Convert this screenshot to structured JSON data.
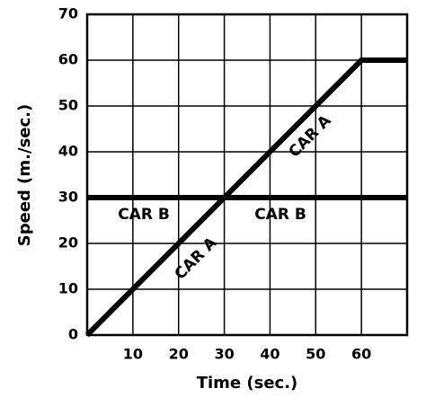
{
  "chart_data": {
    "type": "line",
    "x_label": "Time (sec.)",
    "y_label": "Speed (m./sec.)",
    "series": [
      {
        "name": "CAR A",
        "color": "#000000",
        "x": [
          0,
          60,
          70
        ],
        "values": [
          0,
          60,
          60
        ]
      },
      {
        "name": "CAR B",
        "color": "#000000",
        "x": [
          0,
          70
        ],
        "values": [
          30,
          30
        ]
      }
    ],
    "annotations": [
      "CAR A",
      "CAR A",
      "CAR B",
      "CAR B"
    ],
    "xlim": [
      0,
      70
    ],
    "ylim": [
      0,
      70
    ],
    "xticks": [
      10,
      20,
      30,
      40,
      50,
      60
    ],
    "yticks": [
      0,
      10,
      20,
      30,
      40,
      50,
      60,
      70
    ],
    "grid": true
  }
}
